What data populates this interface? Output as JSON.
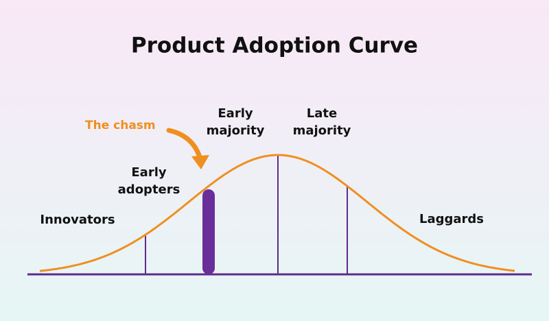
{
  "title": "Product Adoption Curve",
  "chasm_label": "The chasm",
  "segments": [
    {
      "lines": [
        "Innovators"
      ]
    },
    {
      "lines": [
        "Early",
        "adopters"
      ]
    },
    {
      "lines": [
        "Early",
        "majority"
      ]
    },
    {
      "lines": [
        "Late",
        "majority"
      ]
    },
    {
      "lines": [
        "Laggards"
      ]
    }
  ]
}
